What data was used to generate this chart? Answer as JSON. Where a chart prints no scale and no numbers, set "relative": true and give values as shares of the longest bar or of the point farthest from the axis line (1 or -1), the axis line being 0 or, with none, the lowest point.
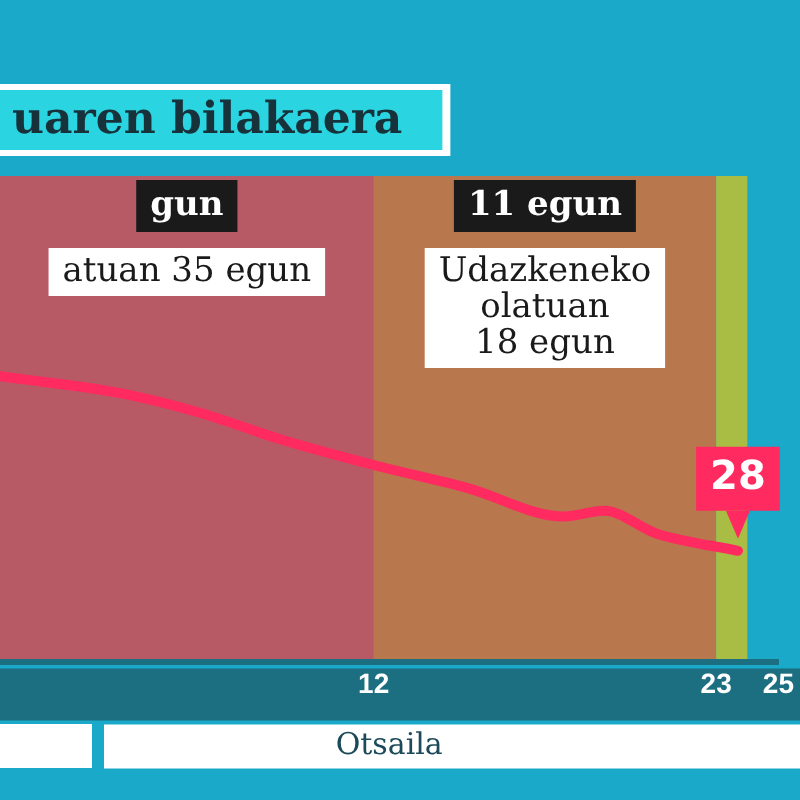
{
  "chart_data": {
    "type": "line",
    "title": "uaren bilakaera",
    "xlabel": "Otsaila",
    "relative": true,
    "xlim": [
      0,
      25
    ],
    "xticks": [
      12,
      23,
      25
    ],
    "x": [
      0,
      3.9,
      6.5,
      9.0,
      12,
      15.0,
      18.1,
      19.4,
      21.1,
      23.7
    ],
    "series": [
      {
        "color": "#ff2a5f",
        "values": [
          1,
          0.94,
          0.87,
          0.78,
          0.69,
          0.61,
          0.51,
          0.53,
          0.45,
          0.39
        ]
      }
    ],
    "bands": [
      {
        "axis": "x",
        "from": 0,
        "to": 12,
        "label": "gun",
        "color": "#b85a66"
      },
      {
        "axis": "x",
        "from": 12,
        "to": 23,
        "label": "11 egun",
        "color": "#b8774c"
      },
      {
        "axis": "x",
        "from": 23,
        "to": 24,
        "color": "#a9bd45"
      }
    ],
    "annotations": [
      "atuan 35 egun",
      "Udazkeneko\nolatuan\n18 egun",
      {
        "text": "28",
        "x": 23.7,
        "y": 0.39
      }
    ],
    "marker": "none",
    "legend": false
  }
}
